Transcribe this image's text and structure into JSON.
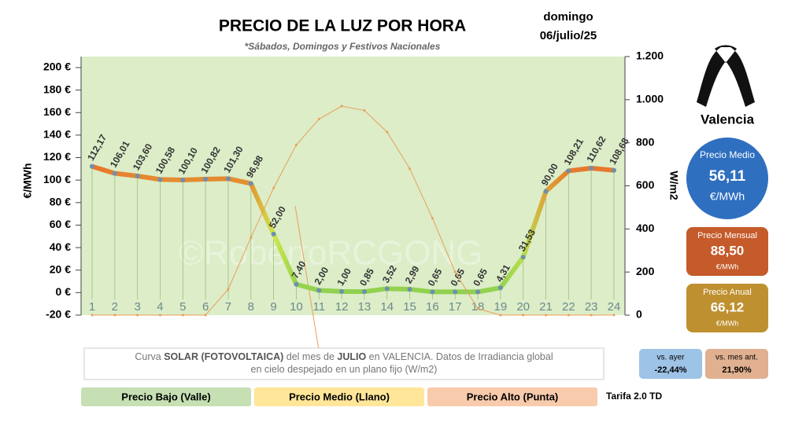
{
  "chart_data": {
    "type": "line",
    "title": "PRECIO DE LA LUZ POR HORA",
    "subtitle": "*Sábados, Domingos y Festivos Nacionales",
    "day": "domingo",
    "date": "06/julio/25",
    "watermark": "©RobertoRCGONG",
    "y_label": "€/MWh",
    "y2_label": "W/m2",
    "categories": [
      "1",
      "2",
      "3",
      "4",
      "5",
      "6",
      "7",
      "8",
      "9",
      "10",
      "11",
      "12",
      "13",
      "14",
      "15",
      "16",
      "17",
      "18",
      "19",
      "20",
      "21",
      "22",
      "23",
      "24"
    ],
    "series": [
      {
        "name": "Precio",
        "color_scale": [
          "#8fd14f",
          "#d4e84a",
          "#e8742a"
        ],
        "values": [
          112.17,
          106.01,
          103.6,
          100.58,
          100.1,
          100.82,
          101.3,
          96.98,
          52,
          7.4,
          2,
          1,
          0.85,
          3.52,
          2.99,
          0.65,
          0.65,
          0.65,
          4.31,
          31.53,
          90,
          108.21,
          110.62,
          108.68
        ],
        "value_labels": [
          "112,17",
          "106,01",
          "103,60",
          "100,58",
          "100,10",
          "100,82",
          "101,30",
          "96,98",
          "52,00",
          "7,40",
          "2,00",
          "1,00",
          "0,85",
          "3,52",
          "2,99",
          "0,65",
          "0,65",
          "0,65",
          "4,31",
          "31,53",
          "90,00",
          "108,21",
          "110,62",
          "108,68"
        ]
      },
      {
        "name": "Curva SOLAR",
        "color": "#e8a05a",
        "axis": "y2",
        "values": [
          0,
          0,
          0,
          0,
          0,
          0,
          120,
          360,
          590,
          790,
          910,
          970,
          950,
          850,
          680,
          450,
          200,
          30,
          0,
          0,
          0,
          0,
          0,
          0
        ]
      }
    ],
    "ylim": [
      -20,
      200
    ],
    "yticks": [
      {
        "value": -20,
        "label": "-20 €"
      },
      {
        "value": 0,
        "label": "0 €"
      },
      {
        "value": 20,
        "label": "20 €"
      },
      {
        "value": 40,
        "label": "40 €"
      },
      {
        "value": 60,
        "label": "60 €"
      },
      {
        "value": 80,
        "label": "80 €"
      },
      {
        "value": 100,
        "label": "100 €"
      },
      {
        "value": 120,
        "label": "120 €"
      },
      {
        "value": 140,
        "label": "140 €"
      },
      {
        "value": 160,
        "label": "160 €"
      },
      {
        "value": 180,
        "label": "180 €"
      },
      {
        "value": 200,
        "label": "200 €"
      }
    ],
    "y2lim": [
      0,
      1200
    ],
    "y2ticks": [
      0,
      200,
      400,
      600,
      800,
      {
        "value": 1000,
        "label": "1.000"
      },
      {
        "value": 1200,
        "label": "1.200"
      }
    ],
    "grid": true,
    "caption": [
      "Curva ",
      "SOLAR (FOTOVOLTAICA)",
      " del mes de ",
      "JULIO",
      " en VALENCIA. Datos de Irradiancia global en cielo despejado en un plano fijo (W/m2)"
    ],
    "legend_bands": [
      {
        "label": "Precio Bajo (Valle)",
        "color": "#c6e0b4"
      },
      {
        "label": "Precio Medio (Llano)",
        "color": "#ffe699"
      },
      {
        "label": "Precio Alto (Punta)",
        "color": "#f8cbad"
      }
    ],
    "tariff": "Tarifa 2.0 TD"
  },
  "side": {
    "city": "Valencia",
    "avg": {
      "label": "Precio Medio",
      "value": "56,11",
      "unit": "€/MWh",
      "color": "#2f6fc0"
    },
    "month": {
      "label": "Precio Mensual",
      "value": "88,50",
      "unit": "€/MWh",
      "color": "#c55a2a"
    },
    "year": {
      "label": "Precio Anual",
      "value": "66,12",
      "unit": "€/MWh",
      "color": "#bf9030"
    },
    "vs_day": {
      "label": "vs. ayer",
      "value": "-22,44%",
      "color": "#9dc3e6"
    },
    "vs_month": {
      "label": "vs. mes ant.",
      "value": "21,90%",
      "color": "#e0b090"
    }
  }
}
